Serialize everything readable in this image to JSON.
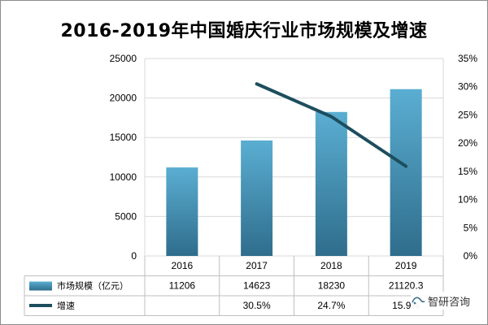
{
  "chart_data": {
    "type": "bar",
    "title": "2016-2019年中国婚庆行业市场规模及增速",
    "categories": [
      "2016",
      "2017",
      "2018",
      "2019"
    ],
    "series": [
      {
        "name": "市场规模（亿元）",
        "type": "bar",
        "axis": "left",
        "values": [
          11206,
          14623,
          18230,
          21120.3
        ],
        "labels": [
          "11206",
          "14623",
          "18230",
          "21120.3"
        ],
        "color": "#4f9fc4"
      },
      {
        "name": "增速",
        "type": "line",
        "axis": "right",
        "values": [
          null,
          30.5,
          24.7,
          15.9
        ],
        "labels": [
          "",
          "30.5%",
          "24.7%",
          "15.9%"
        ],
        "color": "#1d4e5e"
      }
    ],
    "y_left": {
      "range": [
        0,
        25000
      ],
      "ticks": [
        "0",
        "5000",
        "10000",
        "15000",
        "20000",
        "25000"
      ]
    },
    "y_right": {
      "range": [
        0,
        35
      ],
      "ticks": [
        "0%",
        "5%",
        "10%",
        "15%",
        "20%",
        "25%",
        "30%",
        "35%"
      ]
    },
    "grid": true,
    "legend": "data-table-below"
  },
  "watermark": {
    "text": "智研咨询"
  }
}
